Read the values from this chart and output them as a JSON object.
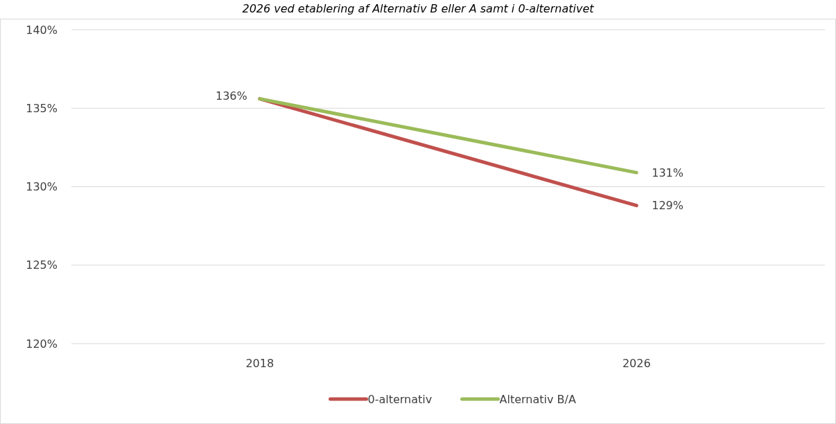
{
  "chart_data": {
    "type": "line",
    "title": "2026 ved etablering af Alternativ B eller A samt i 0-alternativet",
    "categories": [
      "2018",
      "2026"
    ],
    "series": [
      {
        "name": "0-alternativ",
        "color": "#c0504d",
        "values": [
          135.6,
          128.8
        ],
        "value_labels": [
          null,
          "129%"
        ]
      },
      {
        "name": "Alternativ B/A",
        "color": "#9bbb59",
        "values": [
          135.6,
          130.9
        ],
        "value_labels": [
          "136%",
          "131%"
        ]
      }
    ],
    "ylim": [
      120,
      140
    ],
    "yticks": [
      {
        "value": 120,
        "label": "120%"
      },
      {
        "value": 125,
        "label": "125%"
      },
      {
        "value": 130,
        "label": "130%"
      },
      {
        "value": 135,
        "label": "135%"
      },
      {
        "value": 140,
        "label": "140%"
      }
    ],
    "grid": "y",
    "legend": "bottom",
    "marker": "none",
    "line_style": "solid"
  }
}
